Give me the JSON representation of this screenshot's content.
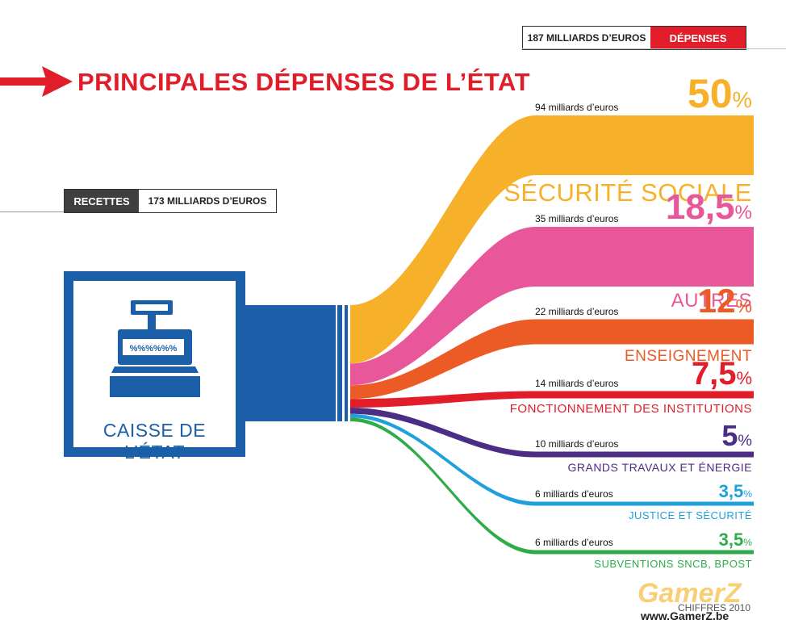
{
  "header": {
    "title": "PRINCIPALES DÉPENSES DE L’ÉTAT",
    "depenses_amount": "187 MILLIARDS D’EUROS",
    "depenses_label": "DÉPENSES",
    "recettes_label": "RECETTES",
    "recettes_amount": "173 MILLIARDS D’EUROS"
  },
  "register": {
    "label": "CAISSE DE L’ÉTAT",
    "display_text": "%%%%%%"
  },
  "colors": {
    "red": "#e11d2a",
    "blue": "#1a5fa8",
    "dark_gray": "#3f3f3f"
  },
  "chart_data": {
    "type": "sankey",
    "source": "CAISSE DE L’ÉTAT",
    "unit": "milliards d’euros",
    "categories": [
      {
        "name": "SÉCURITÉ SOCIALE",
        "pct": "50",
        "amount_text": "94 milliards d’euros",
        "value": 94,
        "share": 50,
        "color": "#f6b02a"
      },
      {
        "name": "AUTRES",
        "pct": "18,5",
        "amount_text": "35 milliards d’euros",
        "value": 35,
        "share": 18.5,
        "color": "#e8579a"
      },
      {
        "name": "ENSEIGNEMENT",
        "pct": "12",
        "amount_text": "22 milliards d’euros",
        "value": 22,
        "share": 12,
        "color": "#ec5a26"
      },
      {
        "name": "FONCTIONNEMENT DES INSTITUTIONS",
        "pct": "7,5",
        "amount_text": "14 milliards d’euros",
        "value": 14,
        "share": 7.5,
        "color": "#e11d2a"
      },
      {
        "name": "GRANDS TRAVAUX ET ÉNERGIE",
        "pct": "5",
        "amount_text": "10 milliards d’euros",
        "value": 10,
        "share": 5,
        "color": "#4b2d86"
      },
      {
        "name": "JUSTICE ET SÉCURITÉ",
        "pct": "3,5",
        "amount_text": "6 milliards d’euros",
        "value": 6,
        "share": 3.5,
        "color": "#1fa0dc"
      },
      {
        "name": "SUBVENTIONS SNCB, BPOST",
        "pct": "3,5",
        "amount_text": "6 milliards d’euros",
        "value": 6,
        "share": 3.5,
        "color": "#2fac4a"
      }
    ]
  },
  "footer": {
    "note": "CHIFFRES 2010",
    "watermark": "GamerZ",
    "watermark_url": "www.GamerZ.be"
  }
}
